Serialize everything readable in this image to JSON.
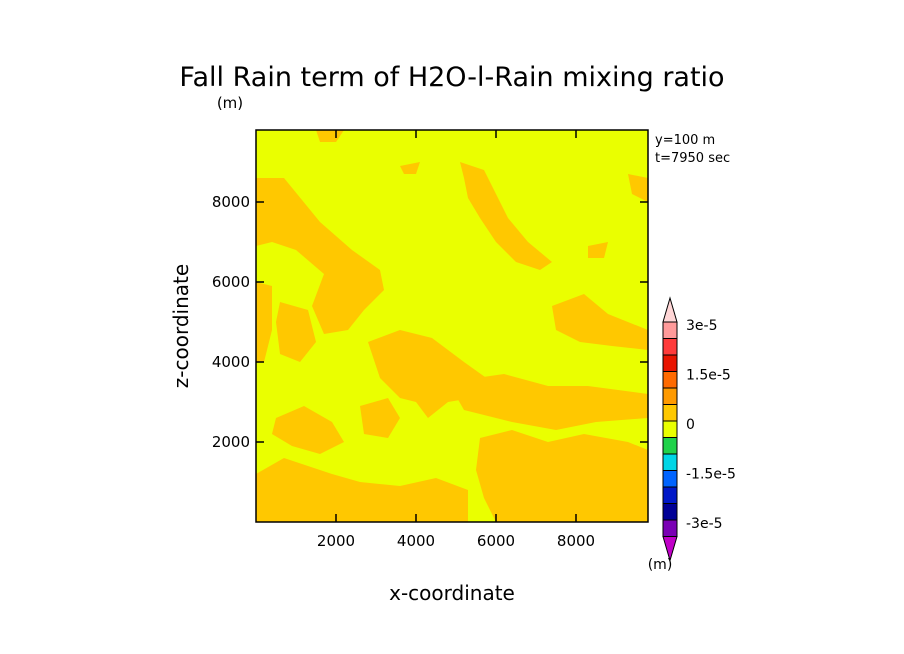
{
  "chart_data": {
    "type": "heatmap",
    "title": "Fall Rain term of H2O-l-Rain mixing ratio",
    "title_units": "(m)",
    "xlabel": "x-coordinate",
    "ylabel": "z-coordinate",
    "xlim": [
      0,
      9800
    ],
    "ylim": [
      0,
      9800
    ],
    "x_ticks": [
      2000,
      4000,
      6000,
      8000
    ],
    "y_ticks": [
      2000,
      4000,
      6000,
      8000
    ],
    "x_tick_labels": [
      "2000",
      "4000",
      "6000",
      "8000"
    ],
    "y_tick_labels": [
      "2000",
      "4000",
      "6000",
      "8000"
    ],
    "annotations": [
      "y=100 m",
      "t=7950 sec"
    ],
    "background_level_color": "#eaff00",
    "anomaly_level_color": "#ffc800",
    "colorbar": {
      "units": "(m)",
      "tick_labels": [
        "3e-5",
        "1.5e-5",
        "0",
        "-1.5e-5",
        "-3e-5"
      ],
      "levels_top_to_bottom": [
        {
          "label": "above 3e-5",
          "color": "#ffd6d6"
        },
        {
          "label": "3e-5",
          "color": "#ff9a9a"
        },
        {
          "label": "",
          "color": "#ff3b3b"
        },
        {
          "label": "",
          "color": "#e81400"
        },
        {
          "label": "1.5e-5",
          "color": "#ff6a00"
        },
        {
          "label": "",
          "color": "#ff9a00"
        },
        {
          "label": "0",
          "color": "#ffc800"
        },
        {
          "label": "",
          "color": "#eaff00"
        },
        {
          "label": "",
          "color": "#20d24a"
        },
        {
          "label": "-1.5e-5",
          "color": "#00d6e6"
        },
        {
          "label": "",
          "color": "#0064ff"
        },
        {
          "label": "",
          "color": "#0018c8"
        },
        {
          "label": "-3e-5",
          "color": "#000096"
        },
        {
          "label": "",
          "color": "#7a00b4"
        },
        {
          "label": "below -3e-5",
          "color": "#c000c8"
        }
      ]
    },
    "field_regions": [
      {
        "name": "upper-left-diagonal-band",
        "value": 0,
        "polygon": [
          [
            0,
            8600
          ],
          [
            700,
            8600
          ],
          [
            1600,
            7500
          ],
          [
            2400,
            6800
          ],
          [
            3100,
            6300
          ],
          [
            3200,
            5800
          ],
          [
            2700,
            5300
          ],
          [
            2300,
            4800
          ],
          [
            1700,
            4700
          ],
          [
            1400,
            5400
          ],
          [
            1700,
            6200
          ],
          [
            1000,
            6800
          ],
          [
            400,
            7000
          ],
          [
            0,
            6900
          ]
        ]
      },
      {
        "name": "upper-right-diagonal-band",
        "value": 0,
        "polygon": [
          [
            5100,
            9000
          ],
          [
            5700,
            8800
          ],
          [
            6300,
            7600
          ],
          [
            6800,
            7000
          ],
          [
            7400,
            6500
          ],
          [
            7100,
            6300
          ],
          [
            6500,
            6500
          ],
          [
            6000,
            7000
          ],
          [
            5600,
            7600
          ],
          [
            5300,
            8100
          ],
          [
            5200,
            8600
          ]
        ]
      },
      {
        "name": "left-edge-strip",
        "value": 0,
        "polygon": [
          [
            0,
            6000
          ],
          [
            400,
            5900
          ],
          [
            400,
            4800
          ],
          [
            200,
            4000
          ],
          [
            0,
            4000
          ]
        ]
      },
      {
        "name": "mid-left-patch",
        "value": 0,
        "polygon": [
          [
            600,
            5500
          ],
          [
            1300,
            5300
          ],
          [
            1500,
            4500
          ],
          [
            1100,
            4000
          ],
          [
            600,
            4200
          ],
          [
            500,
            5000
          ]
        ]
      },
      {
        "name": "central-wedge",
        "value": 0,
        "polygon": [
          [
            2800,
            4500
          ],
          [
            3600,
            4800
          ],
          [
            4400,
            4600
          ],
          [
            5200,
            4000
          ],
          [
            5900,
            3500
          ],
          [
            5400,
            3100
          ],
          [
            4800,
            3000
          ],
          [
            4300,
            2600
          ],
          [
            4000,
            3000
          ],
          [
            3600,
            3100
          ],
          [
            3100,
            3600
          ]
        ]
      },
      {
        "name": "center-right-band",
        "value": 0,
        "polygon": [
          [
            4800,
            3500
          ],
          [
            6200,
            3700
          ],
          [
            7300,
            3400
          ],
          [
            8300,
            3400
          ],
          [
            9800,
            3200
          ],
          [
            9800,
            2600
          ],
          [
            8500,
            2500
          ],
          [
            7500,
            2300
          ],
          [
            6400,
            2500
          ],
          [
            5200,
            2800
          ]
        ]
      },
      {
        "name": "right-upper-patch",
        "value": 0,
        "polygon": [
          [
            7400,
            5400
          ],
          [
            8200,
            5700
          ],
          [
            8800,
            5200
          ],
          [
            9800,
            4800
          ],
          [
            9800,
            4300
          ],
          [
            8900,
            4400
          ],
          [
            8100,
            4500
          ],
          [
            7500,
            4800
          ]
        ]
      },
      {
        "name": "lower-right-blob",
        "value": 0,
        "polygon": [
          [
            5600,
            2100
          ],
          [
            6400,
            2300
          ],
          [
            7300,
            2000
          ],
          [
            8200,
            2200
          ],
          [
            9300,
            2000
          ],
          [
            9800,
            1800
          ],
          [
            9800,
            0
          ],
          [
            6000,
            0
          ],
          [
            5700,
            600
          ],
          [
            5500,
            1300
          ]
        ]
      },
      {
        "name": "bottom-left-band",
        "value": 0,
        "polygon": [
          [
            0,
            1200
          ],
          [
            700,
            1600
          ],
          [
            1300,
            1400
          ],
          [
            1900,
            1200
          ],
          [
            2600,
            1000
          ],
          [
            3600,
            900
          ],
          [
            4500,
            1100
          ],
          [
            5300,
            800
          ],
          [
            5300,
            0
          ],
          [
            0,
            0
          ]
        ]
      },
      {
        "name": "left-lower-patch",
        "value": 0,
        "polygon": [
          [
            500,
            2600
          ],
          [
            1200,
            2900
          ],
          [
            1900,
            2500
          ],
          [
            2200,
            2000
          ],
          [
            1600,
            1700
          ],
          [
            900,
            1900
          ],
          [
            400,
            2200
          ]
        ]
      },
      {
        "name": "left-mid-blob",
        "value": 0,
        "polygon": [
          [
            2600,
            2900
          ],
          [
            3300,
            3100
          ],
          [
            3600,
            2600
          ],
          [
            3300,
            2100
          ],
          [
            2700,
            2200
          ]
        ]
      },
      {
        "name": "right-top-edge",
        "value": 0,
        "polygon": [
          [
            9300,
            8700
          ],
          [
            9800,
            8600
          ],
          [
            9800,
            8000
          ],
          [
            9400,
            8200
          ]
        ]
      },
      {
        "name": "top-left-sliver",
        "value": 0,
        "polygon": [
          [
            1500,
            9800
          ],
          [
            2200,
            9800
          ],
          [
            2000,
            9500
          ],
          [
            1600,
            9500
          ]
        ]
      },
      {
        "name": "upper-mid-speck",
        "value": 0,
        "polygon": [
          [
            3600,
            8900
          ],
          [
            4100,
            9000
          ],
          [
            4000,
            8700
          ],
          [
            3700,
            8700
          ]
        ]
      },
      {
        "name": "right-mid-speck",
        "value": 0,
        "polygon": [
          [
            8300,
            6900
          ],
          [
            8800,
            7000
          ],
          [
            8700,
            6600
          ],
          [
            8300,
            6600
          ]
        ]
      }
    ]
  }
}
